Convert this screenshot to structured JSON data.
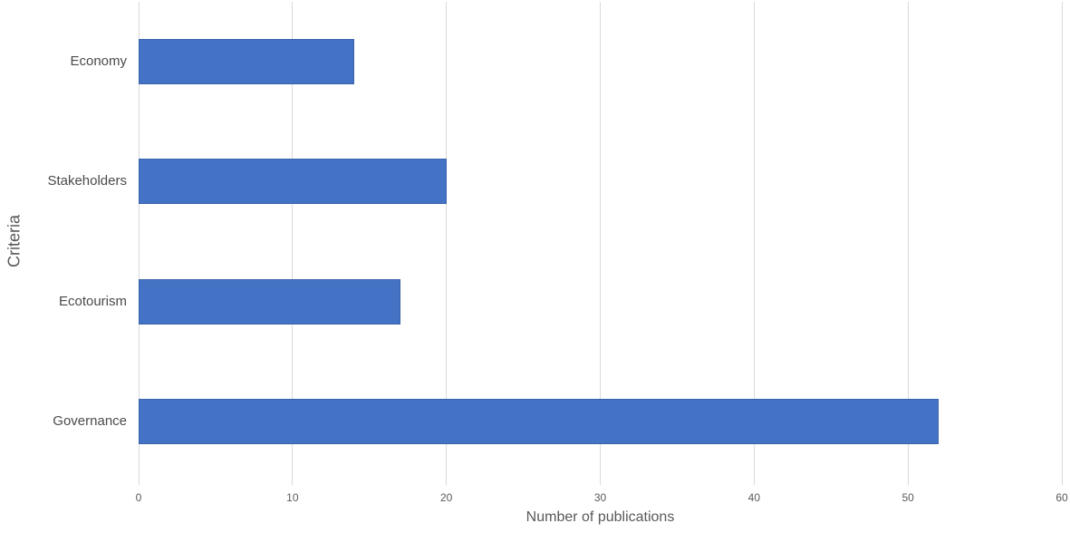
{
  "chart_data": {
    "type": "bar",
    "orientation": "horizontal",
    "title": "",
    "xlabel": "Number of publications",
    "ylabel": "Criteria",
    "categories": [
      "Economy",
      "Stakeholders",
      "Ecotourism",
      "Governance"
    ],
    "values": [
      14,
      20,
      17,
      52
    ],
    "xlim": [
      0,
      60
    ],
    "xticks": [
      0,
      10,
      20,
      30,
      40,
      50,
      60
    ],
    "grid": "vertical-gridlines-on",
    "legend": "none",
    "colors": {
      "bar_fill": "#4472C4",
      "bar_border": "#2F528F",
      "gridline": "#D9D9D9",
      "axis_text": "#595959",
      "category_text": "#4A4A4A",
      "background": "#FFFFFF"
    }
  }
}
